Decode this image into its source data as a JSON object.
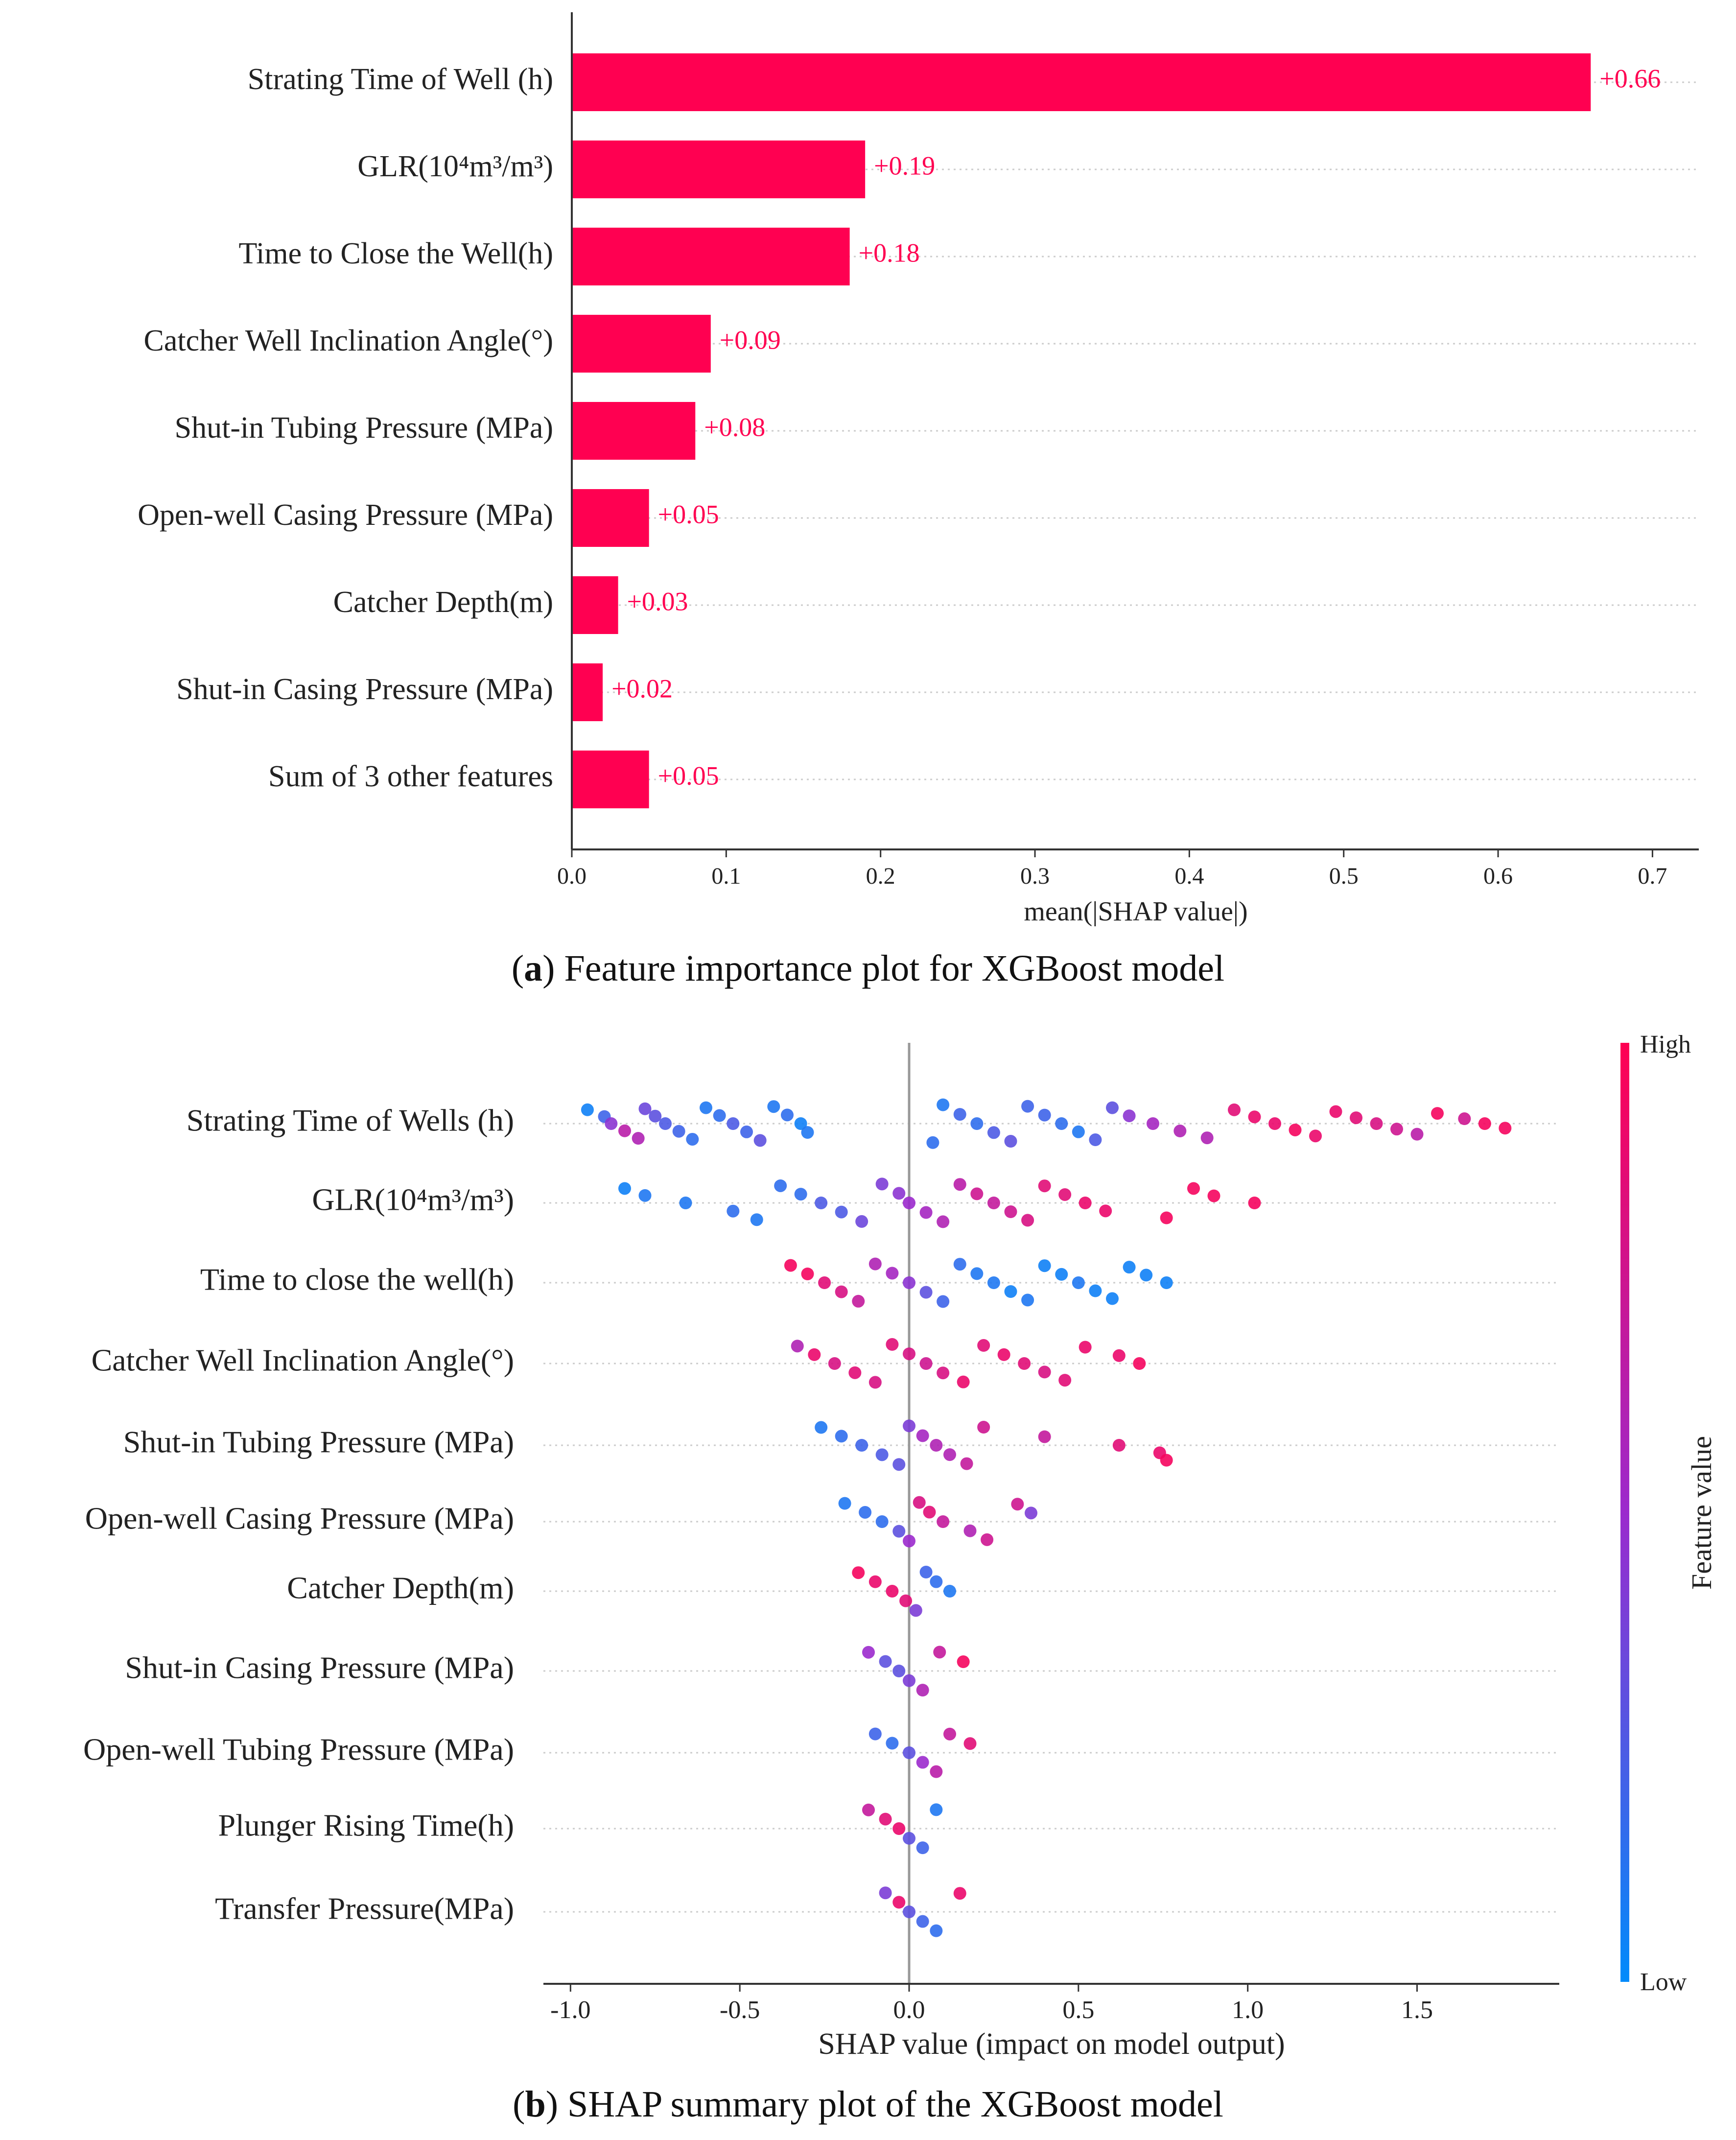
{
  "captions": {
    "a_label": "a",
    "a_text": "Feature importance plot for XGBoost model",
    "b_label": "b",
    "b_text": "SHAP summary plot of the XGBoost model"
  },
  "colors": {
    "bar": "#ff0051",
    "high": "#ff0052",
    "low": "#008bfb",
    "axis": "#333333",
    "grid": "#cccccc",
    "zero_line": "#999999"
  },
  "chart_data": [
    {
      "type": "bar",
      "orientation": "horizontal",
      "title": "",
      "xlabel": "mean(|SHAP value|)",
      "ylabel": "",
      "xlim": [
        0,
        0.73
      ],
      "xticks": [
        0.0,
        0.1,
        0.2,
        0.3,
        0.4,
        0.5,
        0.6,
        0.7
      ],
      "xtick_labels": [
        "0.0",
        "0.1",
        "0.2",
        "0.3",
        "0.4",
        "0.5",
        "0.6",
        "0.7"
      ],
      "categories": [
        "Strating Time of Well (h)",
        "GLR(10⁴m³/m³)",
        "Time to Close the Well(h)",
        "Catcher Well Inclination Angle(°)",
        "Shut-in Tubing Pressure (MPa)",
        "Open-well Casing Pressure (MPa)",
        "Catcher Depth(m)",
        "Shut-in Casing Pressure (MPa)",
        "Sum of 3 other features"
      ],
      "values": [
        0.66,
        0.19,
        0.18,
        0.09,
        0.08,
        0.05,
        0.03,
        0.02,
        0.05
      ],
      "value_labels": [
        "+0.66",
        "+0.19",
        "+0.18",
        "+0.09",
        "+0.08",
        "+0.05",
        "+0.03",
        "+0.02",
        "+0.05"
      ]
    },
    {
      "type": "scatter",
      "subtype": "beeswarm",
      "title": "",
      "xlabel": "SHAP value (impact on model output)",
      "ylabel": "",
      "xlim": [
        -1.08,
        1.92
      ],
      "xticks": [
        -1.0,
        -0.5,
        0.0,
        0.5,
        1.0,
        1.5
      ],
      "xtick_labels": [
        "-1.0",
        "-0.5",
        "0.0",
        "0.5",
        "1.0",
        "1.5"
      ],
      "colorbar": {
        "label": "Feature value",
        "high_label": "High",
        "low_label": "Low"
      },
      "features": [
        {
          "name": "Strating Time of Wells (h)",
          "points": [
            [
              -0.95,
              0.05
            ],
            [
              -0.9,
              0.2
            ],
            [
              -0.88,
              0.45
            ],
            [
              -0.84,
              0.65
            ],
            [
              -0.8,
              0.6
            ],
            [
              -0.78,
              0.35
            ],
            [
              -0.75,
              0.3
            ],
            [
              -0.72,
              0.25
            ],
            [
              -0.68,
              0.2
            ],
            [
              -0.64,
              0.15
            ],
            [
              -0.6,
              0.1
            ],
            [
              -0.56,
              0.15
            ],
            [
              -0.52,
              0.25
            ],
            [
              -0.48,
              0.2
            ],
            [
              -0.44,
              0.3
            ],
            [
              -0.4,
              0.1
            ],
            [
              -0.36,
              0.15
            ],
            [
              -0.32,
              0.05
            ],
            [
              -0.3,
              0.1
            ],
            [
              0.07,
              0.15
            ],
            [
              0.1,
              0.1
            ],
            [
              0.15,
              0.2
            ],
            [
              0.2,
              0.15
            ],
            [
              0.25,
              0.25
            ],
            [
              0.3,
              0.3
            ],
            [
              0.35,
              0.2
            ],
            [
              0.4,
              0.2
            ],
            [
              0.45,
              0.15
            ],
            [
              0.5,
              0.1
            ],
            [
              0.55,
              0.25
            ],
            [
              0.6,
              0.3
            ],
            [
              0.65,
              0.45
            ],
            [
              0.72,
              0.55
            ],
            [
              0.8,
              0.6
            ],
            [
              0.88,
              0.6
            ],
            [
              0.96,
              0.85
            ],
            [
              1.02,
              0.9
            ],
            [
              1.08,
              0.9
            ],
            [
              1.14,
              0.95
            ],
            [
              1.2,
              0.9
            ],
            [
              1.26,
              0.9
            ],
            [
              1.32,
              0.85
            ],
            [
              1.38,
              0.8
            ],
            [
              1.44,
              0.75
            ],
            [
              1.5,
              0.65
            ],
            [
              1.56,
              0.95
            ],
            [
              1.64,
              0.75
            ],
            [
              1.7,
              0.95
            ],
            [
              1.76,
              0.95
            ]
          ]
        },
        {
          "name": "GLR(10⁴m³/m³)",
          "points": [
            [
              -0.84,
              0.05
            ],
            [
              -0.78,
              0.1
            ],
            [
              -0.66,
              0.1
            ],
            [
              -0.52,
              0.15
            ],
            [
              -0.45,
              0.1
            ],
            [
              -0.38,
              0.15
            ],
            [
              -0.32,
              0.15
            ],
            [
              -0.26,
              0.25
            ],
            [
              -0.2,
              0.25
            ],
            [
              -0.14,
              0.35
            ],
            [
              -0.08,
              0.4
            ],
            [
              -0.03,
              0.45
            ],
            [
              0.0,
              0.5
            ],
            [
              0.05,
              0.55
            ],
            [
              0.1,
              0.6
            ],
            [
              0.15,
              0.65
            ],
            [
              0.2,
              0.75
            ],
            [
              0.25,
              0.7
            ],
            [
              0.3,
              0.75
            ],
            [
              0.35,
              0.8
            ],
            [
              0.4,
              0.85
            ],
            [
              0.46,
              0.85
            ],
            [
              0.52,
              0.9
            ],
            [
              0.58,
              0.9
            ],
            [
              0.76,
              0.95
            ],
            [
              0.84,
              0.95
            ],
            [
              0.9,
              0.95
            ],
            [
              1.02,
              0.95
            ]
          ]
        },
        {
          "name": "Time to close the well(h)",
          "points": [
            [
              -0.35,
              0.95
            ],
            [
              -0.3,
              0.95
            ],
            [
              -0.25,
              0.85
            ],
            [
              -0.2,
              0.8
            ],
            [
              -0.15,
              0.7
            ],
            [
              -0.1,
              0.6
            ],
            [
              -0.05,
              0.55
            ],
            [
              0.0,
              0.45
            ],
            [
              0.05,
              0.3
            ],
            [
              0.1,
              0.2
            ],
            [
              0.15,
              0.15
            ],
            [
              0.2,
              0.1
            ],
            [
              0.25,
              0.1
            ],
            [
              0.3,
              0.05
            ],
            [
              0.35,
              0.1
            ],
            [
              0.4,
              0.05
            ],
            [
              0.45,
              0.05
            ],
            [
              0.5,
              0.1
            ],
            [
              0.55,
              0.05
            ],
            [
              0.6,
              0.05
            ],
            [
              0.65,
              0.05
            ],
            [
              0.7,
              0.05
            ],
            [
              0.76,
              0.05
            ]
          ]
        },
        {
          "name": "Catcher Well Inclination Angle(°)",
          "points": [
            [
              -0.33,
              0.6
            ],
            [
              -0.28,
              0.9
            ],
            [
              -0.22,
              0.8
            ],
            [
              -0.16,
              0.85
            ],
            [
              -0.1,
              0.8
            ],
            [
              -0.05,
              0.85
            ],
            [
              0.0,
              0.8
            ],
            [
              0.05,
              0.75
            ],
            [
              0.1,
              0.8
            ],
            [
              0.16,
              0.9
            ],
            [
              0.22,
              0.85
            ],
            [
              0.28,
              0.9
            ],
            [
              0.34,
              0.85
            ],
            [
              0.4,
              0.8
            ],
            [
              0.46,
              0.85
            ],
            [
              0.52,
              0.9
            ],
            [
              0.62,
              0.9
            ],
            [
              0.68,
              0.95
            ]
          ]
        },
        {
          "name": "Shut-in Tubing Pressure (MPa)",
          "points": [
            [
              -0.26,
              0.1
            ],
            [
              -0.2,
              0.15
            ],
            [
              -0.14,
              0.2
            ],
            [
              -0.08,
              0.25
            ],
            [
              -0.03,
              0.3
            ],
            [
              0.0,
              0.4
            ],
            [
              0.04,
              0.55
            ],
            [
              0.08,
              0.6
            ],
            [
              0.12,
              0.6
            ],
            [
              0.17,
              0.7
            ],
            [
              0.22,
              0.75
            ],
            [
              0.4,
              0.7
            ],
            [
              0.62,
              0.85
            ],
            [
              0.74,
              0.9
            ],
            [
              0.76,
              0.95
            ]
          ]
        },
        {
          "name": "Open-well Casing Pressure (MPa)",
          "points": [
            [
              -0.19,
              0.1
            ],
            [
              -0.13,
              0.15
            ],
            [
              -0.08,
              0.15
            ],
            [
              -0.03,
              0.3
            ],
            [
              0.0,
              0.5
            ],
            [
              0.03,
              0.8
            ],
            [
              0.06,
              0.85
            ],
            [
              0.1,
              0.7
            ],
            [
              0.18,
              0.6
            ],
            [
              0.23,
              0.75
            ],
            [
              0.32,
              0.75
            ],
            [
              0.36,
              0.4
            ]
          ]
        },
        {
          "name": "Catcher Depth(m)",
          "points": [
            [
              -0.15,
              0.95
            ],
            [
              -0.1,
              0.9
            ],
            [
              -0.05,
              0.9
            ],
            [
              -0.01,
              0.85
            ],
            [
              0.02,
              0.4
            ],
            [
              0.05,
              0.2
            ],
            [
              0.08,
              0.15
            ],
            [
              0.12,
              0.1
            ]
          ]
        },
        {
          "name": "Shut-in Casing Pressure (MPa)",
          "points": [
            [
              -0.12,
              0.5
            ],
            [
              -0.07,
              0.3
            ],
            [
              -0.03,
              0.3
            ],
            [
              0.0,
              0.4
            ],
            [
              0.04,
              0.6
            ],
            [
              0.09,
              0.7
            ],
            [
              0.16,
              0.95
            ]
          ]
        },
        {
          "name": "Open-well Tubing Pressure (MPa)",
          "points": [
            [
              -0.1,
              0.2
            ],
            [
              -0.05,
              0.15
            ],
            [
              0.0,
              0.3
            ],
            [
              0.04,
              0.5
            ],
            [
              0.08,
              0.65
            ],
            [
              0.12,
              0.7
            ],
            [
              0.18,
              0.85
            ]
          ]
        },
        {
          "name": "Plunger Rising Time(h)",
          "points": [
            [
              -0.12,
              0.7
            ],
            [
              -0.07,
              0.85
            ],
            [
              -0.03,
              0.9
            ],
            [
              0.0,
              0.3
            ],
            [
              0.04,
              0.2
            ],
            [
              0.08,
              0.1
            ]
          ]
        },
        {
          "name": "Transfer Pressure(MPa)",
          "points": [
            [
              -0.07,
              0.4
            ],
            [
              -0.03,
              0.9
            ],
            [
              0.0,
              0.3
            ],
            [
              0.04,
              0.2
            ],
            [
              0.08,
              0.15
            ],
            [
              0.15,
              0.9
            ]
          ]
        }
      ]
    }
  ]
}
